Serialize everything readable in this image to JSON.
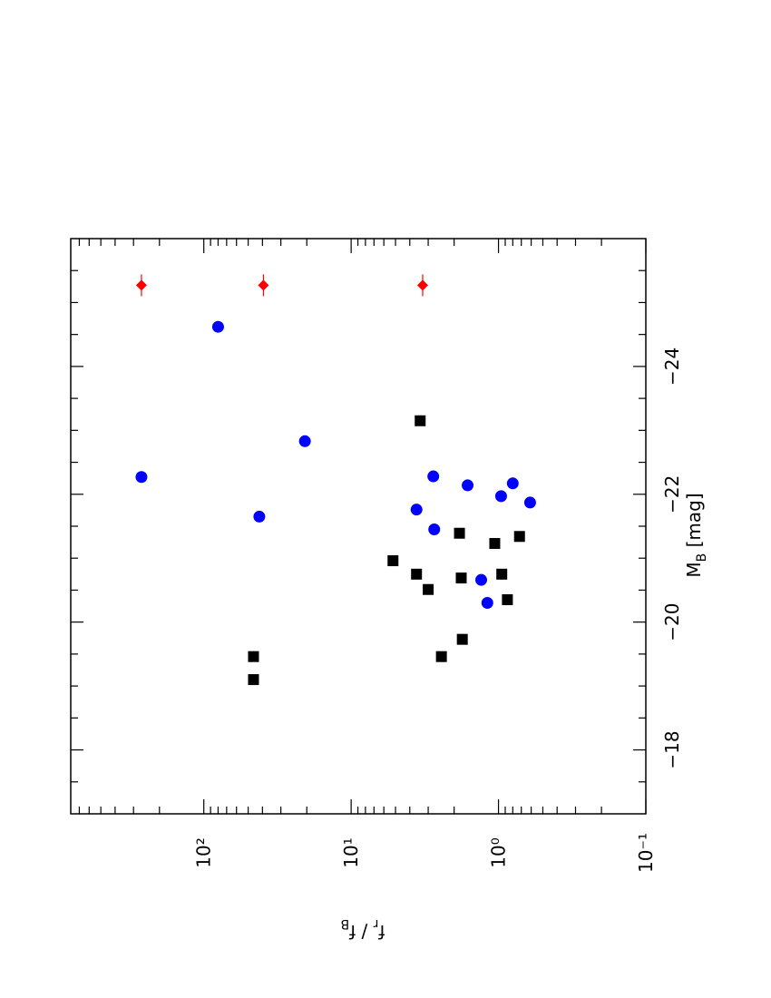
{
  "chart_data": {
    "type": "scatter",
    "xlabel": [
      "M",
      "B",
      " [mag]"
    ],
    "ylabel": [
      "f",
      "r",
      " / f",
      "B"
    ],
    "xlim": [
      -17,
      -26
    ],
    "ylim": [
      0.1,
      800
    ],
    "ylog": true,
    "xticks": [
      {
        "value": -18,
        "label": "−18"
      },
      {
        "value": -20,
        "label": "−20"
      },
      {
        "value": -22,
        "label": "−22"
      },
      {
        "value": -24,
        "label": "−24"
      }
    ],
    "xminor": [
      -17.5,
      -18.5,
      -19,
      -19.5,
      -20.5,
      -21,
      -21.5,
      -22.5,
      -23,
      -23.5,
      -24.5,
      -25,
      -25.5
    ],
    "yticks": [
      {
        "value": 0.1,
        "label": "10⁻¹"
      },
      {
        "value": 1,
        "label": "10⁰"
      },
      {
        "value": 10,
        "label": "10¹"
      },
      {
        "value": 100,
        "label": "10²"
      }
    ],
    "yminor": [
      0.2,
      0.3,
      0.4,
      0.5,
      0.6,
      0.7,
      0.8,
      0.9,
      2,
      3,
      4,
      5,
      6,
      7,
      8,
      9,
      20,
      30,
      40,
      50,
      60,
      70,
      80,
      90,
      200,
      300,
      400,
      500,
      600,
      700
    ],
    "series": [
      {
        "marker": "square",
        "color": "#000000",
        "x": [
          -19.46,
          -19.1,
          -23.15,
          -20.96,
          -20.75,
          -20.51,
          -21.39,
          -20.69,
          -19.73,
          -19.46,
          -21.23,
          -20.75,
          -20.35,
          -21.34
        ],
        "values": [
          46,
          46,
          3.4,
          5.2,
          3.6,
          3.0,
          1.84,
          1.79,
          1.76,
          2.44,
          1.06,
          0.95,
          0.87,
          0.72
        ]
      },
      {
        "marker": "circle",
        "color": "#0000ff",
        "x": [
          -22.27,
          -24.62,
          -21.65,
          -22.83,
          -21.76,
          -22.28,
          -21.45,
          -22.14,
          -20.66,
          -20.3,
          -21.97,
          -22.17,
          -21.87
        ],
        "values": [
          265,
          80,
          42,
          20.6,
          3.6,
          2.77,
          2.73,
          1.62,
          1.31,
          1.19,
          0.96,
          0.8,
          0.61
        ]
      },
      {
        "marker": "diamond",
        "color": "#ff0000",
        "x": [
          -25.27,
          -25.27,
          -25.27
        ],
        "values": [
          265,
          39.4,
          3.27
        ],
        "xerr": [
          0.17,
          0.17,
          0.17
        ]
      }
    ]
  }
}
